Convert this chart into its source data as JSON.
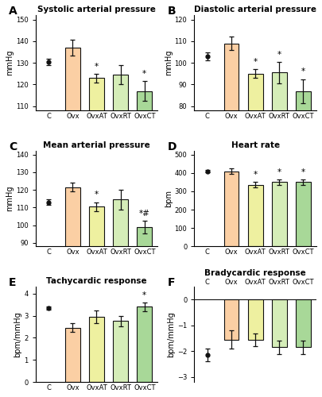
{
  "panels": [
    {
      "label": "A",
      "title": "Systolic arterial pressure",
      "ylabel": "mmHg",
      "categories": [
        "C",
        "Ovx",
        "OvxAT",
        "OvxRT",
        "OvxCT"
      ],
      "values": [
        130.5,
        137.0,
        123.0,
        124.5,
        117.0
      ],
      "errors": [
        1.5,
        3.5,
        2.0,
        4.5,
        4.5
      ],
      "ylim": [
        108,
        152
      ],
      "yticks": [
        110,
        120,
        130,
        140,
        150
      ],
      "sig_stars": [
        null,
        null,
        "*",
        null,
        "*"
      ]
    },
    {
      "label": "B",
      "title": "Diastolic arterial pressure",
      "ylabel": "mmHg",
      "categories": [
        "C",
        "Ovx",
        "OvxAT",
        "OvxRT",
        "OvxCT"
      ],
      "values": [
        103.0,
        109.0,
        95.0,
        95.5,
        87.0
      ],
      "errors": [
        1.8,
        3.0,
        2.0,
        5.0,
        5.5
      ],
      "ylim": [
        78,
        122
      ],
      "yticks": [
        80,
        90,
        100,
        110,
        120
      ],
      "sig_stars": [
        null,
        null,
        "*",
        "*",
        "*"
      ]
    },
    {
      "label": "C",
      "title": "Mean arterial pressure",
      "ylabel": "mmHg",
      "categories": [
        "C",
        "Ovx",
        "OvxAT",
        "OvxRT",
        "OvxCT"
      ],
      "values": [
        113.0,
        121.5,
        110.5,
        114.5,
        99.0
      ],
      "errors": [
        1.5,
        2.5,
        2.5,
        5.5,
        3.5
      ],
      "ylim": [
        88,
        142
      ],
      "yticks": [
        90,
        100,
        110,
        120,
        130,
        140
      ],
      "sig_stars": [
        null,
        null,
        "*",
        null,
        "*#"
      ]
    },
    {
      "label": "D",
      "title": "Heart rate",
      "ylabel": "bpm",
      "categories": [
        "C",
        "Ovx",
        "OvxAT",
        "OvxRT",
        "OvxCT"
      ],
      "values": [
        410.0,
        410.0,
        335.0,
        350.0,
        350.0
      ],
      "errors": [
        5.0,
        15.0,
        15.0,
        15.0,
        15.0
      ],
      "ylim": [
        0,
        520
      ],
      "yticks": [
        0,
        100,
        200,
        300,
        400,
        500
      ],
      "sig_stars": [
        null,
        null,
        "*",
        "*",
        "*"
      ]
    },
    {
      "label": "E",
      "title": "Tachycardic response",
      "ylabel": "bpm/mmHg",
      "categories": [
        "C",
        "Ovx",
        "OvxAT",
        "OvxRT",
        "OvxCT"
      ],
      "values": [
        3.35,
        2.45,
        2.95,
        2.75,
        3.4
      ],
      "errors": [
        0.07,
        0.2,
        0.28,
        0.22,
        0.2
      ],
      "ylim": [
        0,
        4.3
      ],
      "yticks": [
        0,
        1,
        2,
        3,
        4
      ],
      "sig_stars": [
        null,
        null,
        null,
        null,
        "*"
      ]
    },
    {
      "label": "F",
      "title": "Bradycardic response",
      "ylabel": "bpm/mmHg",
      "categories": [
        "C",
        "Ovx",
        "OvxAT",
        "OvxRT",
        "OvxCT"
      ],
      "values": [
        -2.15,
        -1.55,
        -1.55,
        -1.85,
        -1.85
      ],
      "errors": [
        0.25,
        0.35,
        0.25,
        0.25,
        0.25
      ],
      "ylim": [
        -3.2,
        0.5
      ],
      "yticks": [
        0,
        -1,
        -2,
        -3
      ],
      "sig_stars": [
        null,
        null,
        null,
        null,
        null
      ]
    }
  ],
  "bar_colors": [
    "#FBCFA4",
    "#EEF0A0",
    "#D5EDB8",
    "#A8D898"
  ],
  "dot_color": "#111111",
  "bar_edge_color": "#111111",
  "bar_width": 0.62,
  "tick_labelsize": 6.0,
  "ylabel_fontsize": 7.0,
  "title_fontsize": 7.5,
  "panel_label_fontsize": 10,
  "star_fontsize": 7.5,
  "background_color": "#ffffff"
}
